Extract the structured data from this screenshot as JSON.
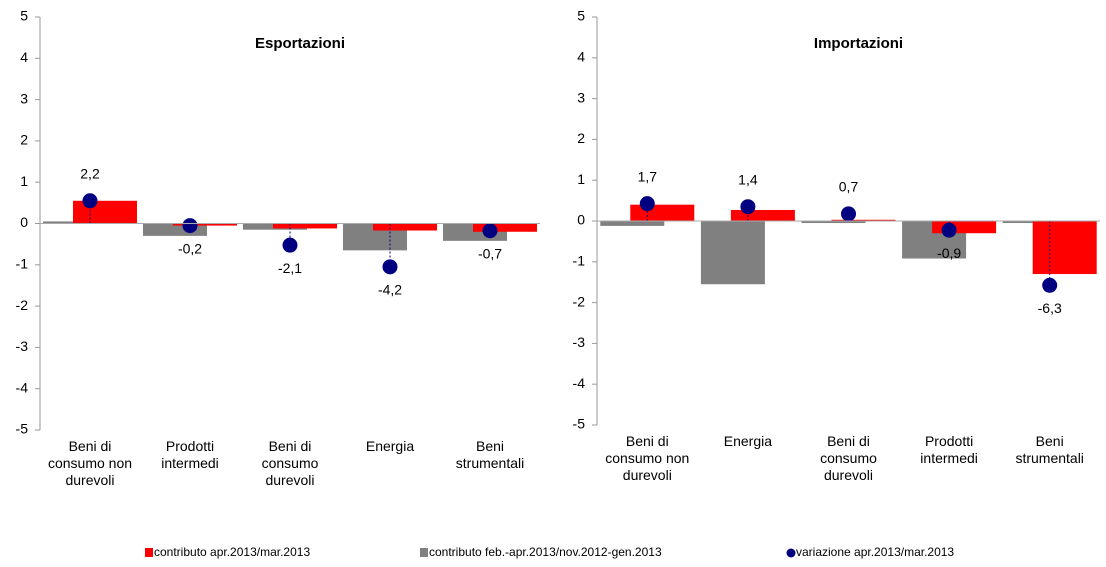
{
  "legend": [
    {
      "name": "contributo apr.2013/mar.2013",
      "color": "#ff0000",
      "marker": "square"
    },
    {
      "name": "contributo feb.-apr.2013/nov.2012-gen.2013",
      "color": "#808080",
      "marker": "square"
    },
    {
      "name": "variazione apr.2013/mar.2013",
      "color": "#000080",
      "marker": "circle"
    }
  ],
  "chart_data": [
    {
      "type": "bar",
      "title": "Esportazioni",
      "categories": [
        "Beni di consumo non durevoli",
        "Prodotti intermedi",
        "Beni di consumo durevoli",
        "Energia",
        "Beni strumentali"
      ],
      "series": [
        {
          "values": [
            0.55,
            -0.05,
            -0.12,
            -0.17,
            -0.2
          ]
        },
        {
          "values": [
            0.05,
            -0.3,
            -0.15,
            -0.65,
            -0.42
          ]
        },
        {
          "values": [
            2.2,
            -0.2,
            -2.1,
            -4.2,
            -0.7
          ],
          "value_labels": [
            "2,2",
            "-0,2",
            "-2,1",
            "-4,2",
            "-0,7"
          ],
          "axis": "y2"
        }
      ],
      "ylim": [
        -5,
        5
      ],
      "yticks": [
        -5,
        -4,
        -3,
        -2,
        -1,
        0,
        1,
        2,
        3,
        4,
        5
      ],
      "y2lim": [
        -20,
        20
      ]
    },
    {
      "type": "bar",
      "title": "Importazioni",
      "categories": [
        "Beni di consumo non durevoli",
        "Energia",
        "Beni di consumo durevoli",
        "Prodotti intermedi",
        "Beni strumentali"
      ],
      "series": [
        {
          "values": [
            0.4,
            0.27,
            0.03,
            -0.3,
            -1.3
          ]
        },
        {
          "values": [
            -0.12,
            -1.55,
            -0.05,
            -0.92,
            -0.05
          ]
        },
        {
          "values": [
            1.7,
            1.4,
            0.7,
            -0.9,
            -6.3
          ],
          "value_labels": [
            "1,7",
            "1,4",
            "0,7",
            "-0,9",
            "-6,3"
          ],
          "axis": "y2"
        }
      ],
      "ylim": [
        -5,
        5
      ],
      "yticks": [
        -5,
        -4,
        -3,
        -2,
        -1,
        0,
        1,
        2,
        3,
        4,
        5
      ],
      "y2lim": [
        -20,
        20
      ]
    }
  ]
}
